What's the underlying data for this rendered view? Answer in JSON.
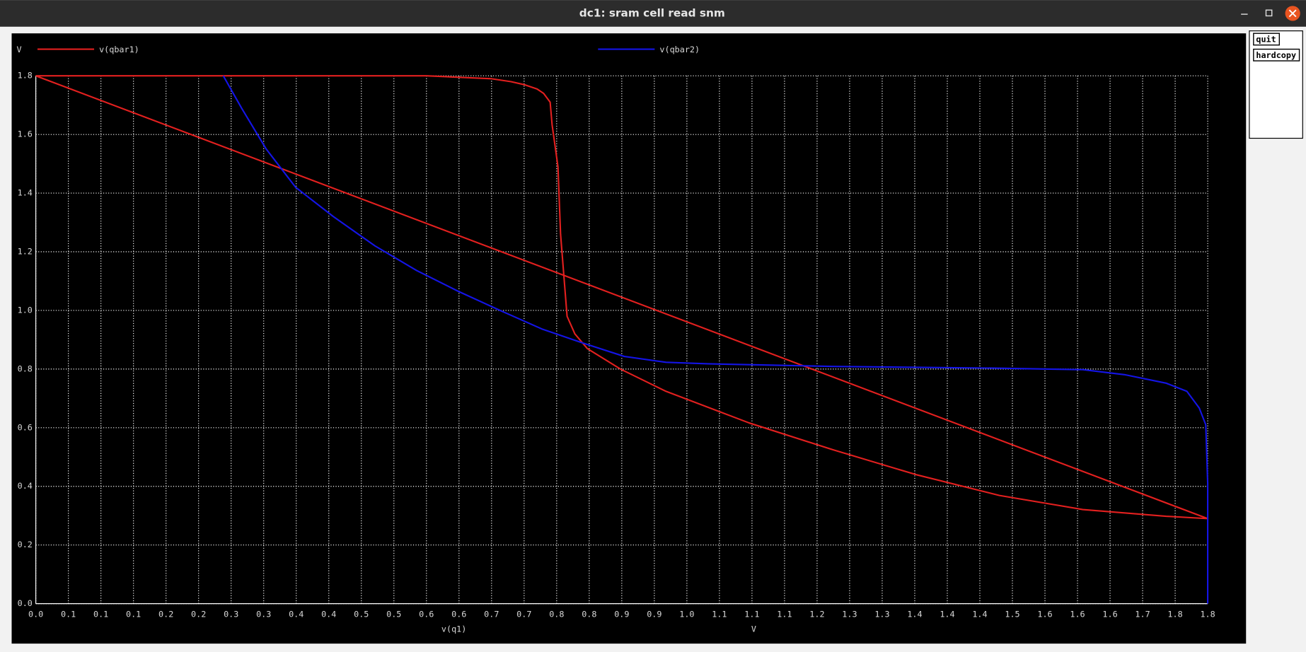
{
  "window": {
    "title": "dc1: sram cell read snm",
    "buttons": [
      "quit",
      "hardcopy"
    ]
  },
  "chart_data": {
    "type": "line",
    "ylabel": "V",
    "xlabel": "v(q1)",
    "xunit": "V",
    "grid": true,
    "legend": "top",
    "xlim": [
      0,
      1.8
    ],
    "ylim": [
      0,
      1.8
    ],
    "xticks": [
      {
        "value": 0,
        "label": "0.0"
      },
      {
        "value": 0.05,
        "label": "0.1"
      },
      0.1,
      {
        "value": 0.15,
        "label": "0.1"
      },
      0.2,
      {
        "value": 0.25,
        "label": "0.2"
      },
      0.3,
      {
        "value": 0.35,
        "label": "0.3"
      },
      0.4,
      {
        "value": 0.45,
        "label": "0.4"
      },
      0.5,
      {
        "value": 0.55,
        "label": "0.5"
      },
      0.6,
      {
        "value": 0.65,
        "label": "0.6"
      },
      0.7,
      {
        "value": 0.75,
        "label": "0.7"
      },
      0.8,
      {
        "value": 0.85,
        "label": "0.8"
      },
      0.9,
      {
        "value": 0.95,
        "label": "0.9"
      },
      {
        "value": 1,
        "label": "1.0"
      },
      {
        "value": 1.05,
        "label": "1.1"
      },
      1.1,
      {
        "value": 1.15,
        "label": "1.1"
      },
      1.2,
      {
        "value": 1.25,
        "label": "1.3"
      },
      1.3,
      {
        "value": 1.35,
        "label": "1.4"
      },
      1.4,
      {
        "value": 1.45,
        "label": "1.4"
      },
      1.5,
      {
        "value": 1.55,
        "label": "1.6"
      },
      1.6,
      {
        "value": 1.65,
        "label": "1.6"
      },
      1.7,
      {
        "value": 1.75,
        "label": "1.8"
      },
      1.8
    ],
    "yticks": [
      {
        "value": 0,
        "label": "0.0"
      },
      0.2,
      0.4,
      0.6,
      0.8,
      {
        "value": 1,
        "label": "1.0"
      },
      1.2,
      1.4,
      1.6,
      1.8
    ],
    "series": [
      {
        "name": "v(qbar1)",
        "color": "#e3201f",
        "x": [
          0,
          0.6,
          0.7,
          0.73,
          0.75,
          0.77,
          0.78,
          0.79,
          0.793,
          0.802,
          0.806,
          0.811,
          0.816,
          0.828,
          0.847,
          0.898,
          0.968,
          1.096,
          1.224,
          1.352,
          1.48,
          1.608,
          1.736,
          1.8,
          0
        ],
        "values": [
          1.8,
          1.8,
          1.79,
          1.78,
          1.77,
          1.755,
          1.74,
          1.71,
          1.633,
          1.49,
          1.26,
          1.12,
          0.98,
          0.92,
          0.87,
          0.8,
          0.724,
          0.616,
          0.525,
          0.44,
          0.369,
          0.321,
          0.298,
          0.29,
          1.8
        ]
      },
      {
        "name": "v(qbar2)",
        "color": "#1414e6",
        "x": [
          0.288,
          0.316,
          0.354,
          0.399,
          0.457,
          0.521,
          0.585,
          0.649,
          0.713,
          0.777,
          0.84,
          0.904,
          0.968,
          1.032,
          1.224,
          1.48,
          1.608,
          1.672,
          1.736,
          1.768,
          1.787,
          1.797,
          1.8,
          1.8
        ],
        "values": [
          1.8,
          1.69,
          1.55,
          1.42,
          1.32,
          1.22,
          1.136,
          1.065,
          1.0,
          0.937,
          0.889,
          0.843,
          0.823,
          0.818,
          0.809,
          0.803,
          0.798,
          0.781,
          0.752,
          0.724,
          0.667,
          0.61,
          0.41,
          0
        ]
      }
    ]
  }
}
